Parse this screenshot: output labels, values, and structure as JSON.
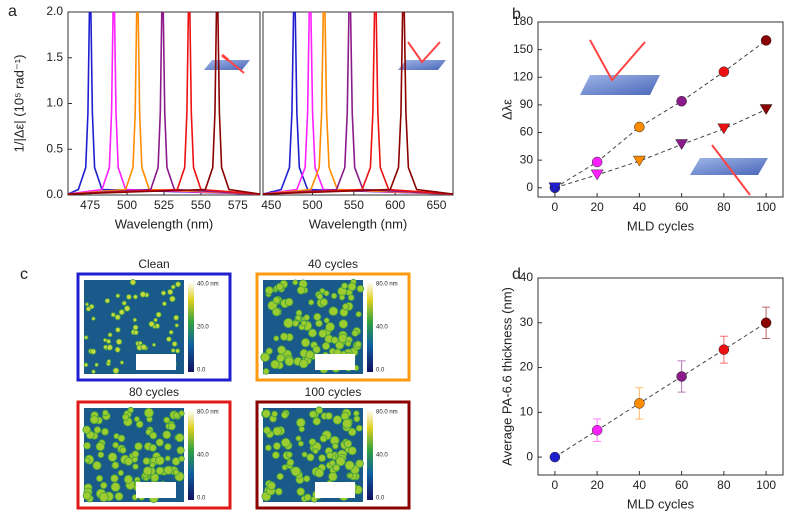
{
  "chart_data": [
    {
      "type": "line",
      "panel": "a",
      "y_label": "1/|Δε| (10⁵ rad⁻¹)",
      "x_label": "Wavelength (nm)",
      "xlim": [
        460,
        590
      ],
      "xticks": [
        475,
        500,
        525,
        550,
        575
      ],
      "ylim": [
        0,
        2
      ],
      "yticks": [
        {
          "value": 0,
          "label": "0.0"
        },
        {
          "value": 0.5,
          "label": "0.5"
        },
        {
          "value": 1,
          "label": "1.0"
        },
        {
          "value": 1.5,
          "label": "1.5"
        },
        {
          "value": 2,
          "label": "2.0"
        }
      ],
      "series": [
        {
          "color": "#1f1fd0",
          "x": [
            460,
            467,
            472,
            473.5,
            474.5,
            475.5,
            476.5,
            478,
            483,
            590
          ],
          "values": [
            0.01,
            0.06,
            0.3,
            0.9,
            2,
            2,
            0.9,
            0.3,
            0.06,
            0.01
          ]
        },
        {
          "color": "#ff20ff",
          "x": [
            460,
            483,
            488,
            489.5,
            490.5,
            491.5,
            492.5,
            494,
            499,
            590
          ],
          "values": [
            0.01,
            0.06,
            0.3,
            0.9,
            2,
            2,
            0.9,
            0.3,
            0.06,
            0.01
          ]
        },
        {
          "color": "#ff8c00",
          "x": [
            460,
            499,
            504,
            505.5,
            506.5,
            507.5,
            508.5,
            510,
            515,
            590
          ],
          "values": [
            0.01,
            0.06,
            0.3,
            0.9,
            2,
            2,
            0.9,
            0.3,
            0.06,
            0.01
          ]
        },
        {
          "color": "#8b1a8b",
          "x": [
            460,
            516,
            521,
            522.5,
            523.5,
            524.5,
            525.5,
            527,
            532,
            590
          ],
          "values": [
            0.01,
            0.06,
            0.3,
            0.9,
            2,
            2,
            0.9,
            0.3,
            0.06,
            0.01
          ]
        },
        {
          "color": "#ee1111",
          "x": [
            460,
            534,
            539,
            540.5,
            541.5,
            542.5,
            543.5,
            545,
            550,
            590
          ],
          "values": [
            0.01,
            0.06,
            0.3,
            0.9,
            2,
            2,
            0.9,
            0.3,
            0.06,
            0.01
          ]
        },
        {
          "color": "#8b0000",
          "x": [
            460,
            553,
            558,
            559.5,
            560.5,
            561.5,
            562.5,
            564,
            569,
            590
          ],
          "values": [
            0.01,
            0.06,
            0.3,
            0.9,
            2,
            2,
            0.9,
            0.3,
            0.06,
            0.01
          ]
        }
      ]
    },
    {
      "type": "line",
      "x_label": "Wavelength (nm)",
      "xlim": [
        440,
        670
      ],
      "xticks": [
        450,
        500,
        550,
        600,
        650
      ],
      "ylim": [
        0,
        2
      ],
      "series": [
        {
          "color": "#1f1fd0",
          "x": [
            440,
            462,
            472,
            475,
            477,
            479,
            481,
            484,
            494,
            670
          ],
          "values": [
            0.01,
            0.06,
            0.3,
            0.9,
            2,
            2,
            0.9,
            0.3,
            0.06,
            0.01
          ]
        },
        {
          "color": "#ff20ff",
          "x": [
            440,
            481,
            491,
            494,
            496,
            498,
            500,
            503,
            513,
            670
          ],
          "values": [
            0.01,
            0.06,
            0.3,
            0.9,
            2,
            2,
            0.9,
            0.3,
            0.06,
            0.01
          ]
        },
        {
          "color": "#ff8c00",
          "x": [
            440,
            498,
            508,
            511,
            513,
            515,
            517,
            520,
            530,
            670
          ],
          "values": [
            0.01,
            0.06,
            0.3,
            0.9,
            2,
            2,
            0.9,
            0.3,
            0.06,
            0.01
          ]
        },
        {
          "color": "#8b1a8b",
          "x": [
            440,
            529,
            539,
            542,
            544,
            546,
            548,
            551,
            561,
            670
          ],
          "values": [
            0.01,
            0.06,
            0.3,
            0.9,
            2,
            2,
            0.9,
            0.3,
            0.06,
            0.01
          ]
        },
        {
          "color": "#ee1111",
          "x": [
            440,
            560,
            570,
            573,
            575,
            577,
            579,
            582,
            592,
            670
          ],
          "values": [
            0.01,
            0.06,
            0.3,
            0.9,
            2,
            2,
            0.9,
            0.3,
            0.06,
            0.01
          ]
        },
        {
          "color": "#8b0000",
          "x": [
            440,
            594,
            604,
            607,
            609,
            611,
            613,
            616,
            626,
            670
          ],
          "values": [
            0.01,
            0.06,
            0.3,
            0.9,
            2,
            2,
            0.9,
            0.3,
            0.06,
            0.01
          ]
        }
      ]
    },
    {
      "type": "scatter",
      "panel": "b",
      "y_label": "Δλε",
      "x_label": "MLD cycles",
      "xlim": [
        -8,
        108
      ],
      "xticks": [
        0,
        20,
        40,
        60,
        80,
        100
      ],
      "ylim": [
        -10,
        180
      ],
      "yticks": [
        0,
        30,
        60,
        90,
        120,
        150,
        180
      ],
      "x": [
        0,
        20,
        40,
        60,
        80,
        100
      ],
      "point_colors": [
        "#1f1fd0",
        "#ff20ff",
        "#ff8c00",
        "#8b1a8b",
        "#ee1111",
        "#8b0000"
      ],
      "series": [
        {
          "marker": "circle",
          "values": [
            0,
            28,
            66,
            94,
            126,
            160
          ]
        },
        {
          "marker": "triangle-down",
          "values": [
            0,
            14,
            29,
            47,
            64,
            85
          ]
        }
      ]
    },
    {
      "type": "errorbar",
      "panel": "d",
      "y_label": "Average PA-6.6 thickness (nm)",
      "x_label": "MLD cycles",
      "xlim": [
        -8,
        108
      ],
      "xticks": [
        0,
        20,
        40,
        60,
        80,
        100
      ],
      "ylim": [
        -4,
        40
      ],
      "yticks": [
        0,
        10,
        20,
        30,
        40
      ],
      "x": [
        0,
        20,
        40,
        60,
        80,
        100
      ],
      "point_colors": [
        "#1f1fd0",
        "#ff20ff",
        "#ff8c00",
        "#8b1a8b",
        "#ee1111",
        "#8b0000"
      ],
      "values": [
        0,
        6,
        12,
        18,
        24,
        30
      ],
      "errors": [
        0,
        2.5,
        3.5,
        3.5,
        3,
        3.5
      ]
    }
  ],
  "afm": {
    "panel": "c",
    "images": [
      {
        "title": "Clean",
        "border": "#1f1fd0",
        "scale_top": "40.0 nm",
        "scale_mid": "20.0",
        "scale_bottom": "0.0"
      },
      {
        "title": "40 cycles",
        "border": "#ff9a10",
        "scale_top": "80.0 nm",
        "scale_mid": "40.0",
        "scale_bottom": "0.0"
      },
      {
        "title": "80 cycles",
        "border": "#e01818",
        "scale_top": "80.0 nm",
        "scale_mid": "40.0",
        "scale_bottom": "0.0"
      },
      {
        "title": "100 cycles",
        "border": "#8b0000",
        "scale_top": "80.0 nm",
        "scale_mid": "40.0",
        "scale_bottom": "0.0"
      }
    ]
  }
}
